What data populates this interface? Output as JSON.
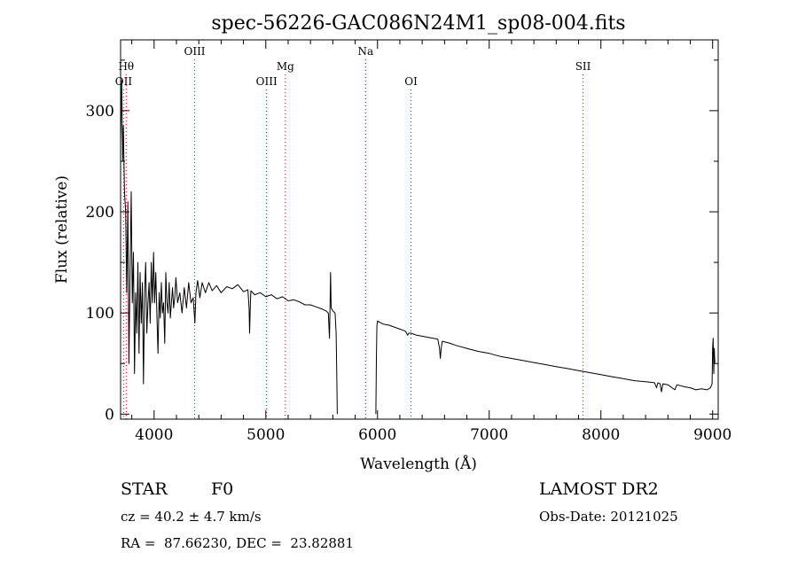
{
  "chart_data": {
    "type": "line",
    "title": "spec-56226-GAC086N24M1_sp08-004.fits",
    "xlabel": "Wavelength (Å)",
    "ylabel": "Flux (relative)",
    "xlim": [
      3700,
      9050
    ],
    "ylim": [
      -5,
      370
    ],
    "xticks": [
      4000,
      5000,
      6000,
      7000,
      8000,
      9000
    ],
    "yticks": [
      0,
      100,
      200,
      300
    ],
    "grid": false,
    "line_color": "#000000",
    "marker_color": "#cc0000",
    "spectral_lines": [
      {
        "label": "OII",
        "x": 3727,
        "row": 3
      },
      {
        "label": "Hθ",
        "x": 3750,
        "row": 2
      },
      {
        "label": "OIII",
        "x": 4363,
        "row": 1
      },
      {
        "label": "OIII",
        "x": 5007,
        "row": 3
      },
      {
        "label": "Mg",
        "x": 5175,
        "row": 2
      },
      {
        "label": "Na",
        "x": 5893,
        "row": 1
      },
      {
        "label": "OI",
        "x": 6300,
        "row": 3
      },
      {
        "label": "SII",
        "x": 7840,
        "row": 2
      }
    ],
    "series": [
      {
        "segments": [
          [
            [
              3700,
              270
            ],
            [
              3710,
              330
            ],
            [
              3718,
              250
            ],
            [
              3725,
              285
            ],
            [
              3735,
              220
            ],
            [
              3745,
              200
            ],
            [
              3755,
              120
            ],
            [
              3765,
              210
            ],
            [
              3775,
              50
            ],
            [
              3785,
              140
            ],
            [
              3795,
              220
            ],
            [
              3805,
              110
            ],
            [
              3815,
              160
            ],
            [
              3825,
              40
            ],
            [
              3835,
              120
            ],
            [
              3845,
              80
            ],
            [
              3855,
              150
            ],
            [
              3865,
              60
            ],
            [
              3875,
              140
            ],
            [
              3885,
              90
            ],
            [
              3895,
              130
            ],
            [
              3905,
              30
            ],
            [
              3915,
              120
            ],
            [
              3925,
              150
            ],
            [
              3935,
              80
            ],
            [
              3945,
              110
            ],
            [
              3955,
              130
            ],
            [
              3965,
              90
            ],
            [
              3975,
              150
            ],
            [
              3985,
              110
            ],
            [
              3995,
              160
            ],
            [
              4005,
              110
            ],
            [
              4015,
              140
            ],
            [
              4025,
              100
            ],
            [
              4035,
              60
            ],
            [
              4045,
              120
            ],
            [
              4055,
              95
            ],
            [
              4065,
              130
            ],
            [
              4075,
              100
            ],
            [
              4085,
              110
            ],
            [
              4095,
              70
            ],
            [
              4105,
              140
            ],
            [
              4115,
              110
            ],
            [
              4125,
              100
            ],
            [
              4135,
              130
            ],
            [
              4145,
              95
            ],
            [
              4155,
              110
            ],
            [
              4165,
              125
            ],
            [
              4175,
              105
            ],
            [
              4185,
              115
            ],
            [
              4195,
              135
            ],
            [
              4210,
              110
            ],
            [
              4230,
              120
            ],
            [
              4250,
              100
            ],
            [
              4270,
              125
            ],
            [
              4290,
              105
            ],
            [
              4310,
              130
            ],
            [
              4330,
              110
            ],
            [
              4350,
              115
            ],
            [
              4365,
              90
            ],
            [
              4375,
              120
            ],
            [
              4390,
              132
            ],
            [
              4410,
              115
            ],
            [
              4430,
              130
            ],
            [
              4460,
              120
            ],
            [
              4490,
              130
            ],
            [
              4520,
              122
            ],
            [
              4560,
              127
            ],
            [
              4600,
              120
            ],
            [
              4650,
              126
            ],
            [
              4700,
              124
            ],
            [
              4750,
              128
            ],
            [
              4800,
              121
            ],
            [
              4840,
              123
            ],
            [
              4850,
              105
            ],
            [
              4855,
              80
            ],
            [
              4860,
              100
            ],
            [
              4866,
              122
            ],
            [
              4900,
              118
            ],
            [
              4950,
              120
            ],
            [
              5000,
              116
            ],
            [
              5050,
              118
            ],
            [
              5100,
              114
            ],
            [
              5150,
              116
            ],
            [
              5200,
              112
            ],
            [
              5250,
              113
            ],
            [
              5300,
              111
            ],
            [
              5350,
              108
            ],
            [
              5400,
              108
            ],
            [
              5450,
              106
            ],
            [
              5500,
              104
            ],
            [
              5540,
              102
            ],
            [
              5560,
              100
            ],
            [
              5570,
              75
            ],
            [
              5575,
              105
            ],
            [
              5580,
              140
            ],
            [
              5585,
              105
            ],
            [
              5600,
              102
            ],
            [
              5620,
              100
            ],
            [
              5630,
              80
            ],
            [
              5635,
              40
            ],
            [
              5640,
              0
            ]
          ],
          [
            [
              5985,
              0
            ],
            [
              5990,
              55
            ],
            [
              5995,
              88
            ],
            [
              6000,
              92
            ],
            [
              6050,
              89
            ],
            [
              6100,
              88
            ],
            [
              6150,
              86
            ],
            [
              6200,
              84
            ],
            [
              6250,
              82
            ],
            [
              6270,
              78
            ],
            [
              6280,
              80
            ],
            [
              6300,
              80
            ],
            [
              6350,
              78
            ],
            [
              6400,
              77
            ],
            [
              6450,
              76
            ],
            [
              6500,
              75
            ],
            [
              6540,
              74
            ],
            [
              6555,
              65
            ],
            [
              6562,
              55
            ],
            [
              6570,
              65
            ],
            [
              6580,
              72
            ],
            [
              6650,
              70
            ],
            [
              6700,
              68
            ],
            [
              6800,
              65
            ],
            [
              6900,
              62
            ],
            [
              7000,
              60
            ],
            [
              7100,
              57
            ],
            [
              7200,
              55
            ],
            [
              7300,
              53
            ],
            [
              7400,
              51
            ],
            [
              7500,
              49
            ],
            [
              7600,
              47
            ],
            [
              7700,
              45
            ],
            [
              7800,
              43
            ],
            [
              7900,
              41
            ],
            [
              8000,
              39
            ],
            [
              8100,
              37
            ],
            [
              8200,
              35
            ],
            [
              8300,
              33
            ],
            [
              8400,
              32
            ],
            [
              8480,
              31
            ],
            [
              8498,
              26
            ],
            [
              8510,
              31
            ],
            [
              8530,
              30
            ],
            [
              8542,
              22
            ],
            [
              8555,
              30
            ],
            [
              8600,
              29
            ],
            [
              8662,
              24
            ],
            [
              8680,
              29
            ],
            [
              8750,
              27
            ],
            [
              8800,
              26
            ],
            [
              8850,
              24
            ],
            [
              8900,
              25
            ],
            [
              8950,
              24
            ],
            [
              8980,
              26
            ],
            [
              8995,
              30
            ],
            [
              9000,
              65
            ],
            [
              9005,
              75
            ],
            [
              9010,
              40
            ],
            [
              9015,
              65
            ],
            [
              9020,
              50
            ]
          ]
        ]
      }
    ]
  },
  "info": {
    "class_label": "STAR",
    "subclass": "F0",
    "survey": "LAMOST DR2",
    "redshift": "cz = 40.2 ± 4.7 km/s",
    "obs_date": "Obs-Date: 20121025",
    "coords": "RA =  87.66230, DEC =  23.82881"
  }
}
